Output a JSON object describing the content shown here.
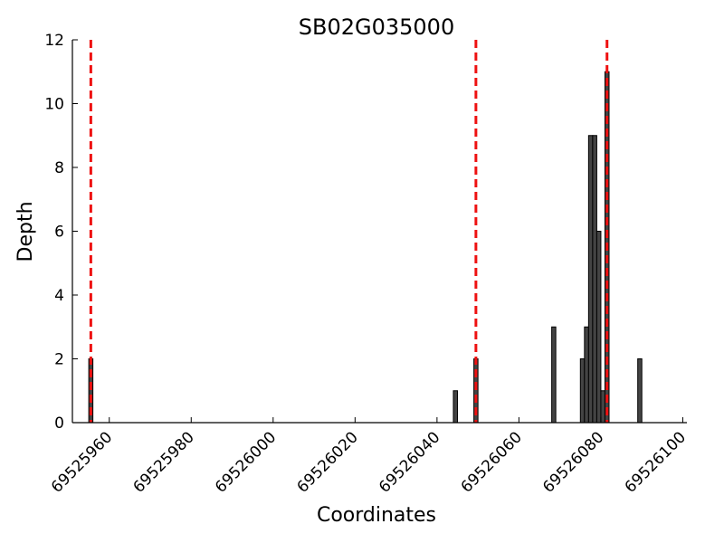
{
  "chart_data": {
    "type": "bar",
    "title": "SB02G035000",
    "xlabel": "Coordinates",
    "ylabel": "Depth",
    "xlim": [
      69525951,
      69526101
    ],
    "ylim": [
      0,
      12
    ],
    "grid": false,
    "legend": "none",
    "x_ticks": [
      69525960,
      69525980,
      69526000,
      69526020,
      69526040,
      69526060,
      69526080,
      69526100
    ],
    "x_tick_labels": [
      "69525960",
      "69525980",
      "69526000",
      "69526020",
      "69526040",
      "69526060",
      "69526080",
      "69526100"
    ],
    "y_ticks": [
      0,
      2,
      4,
      6,
      8,
      10,
      12
    ],
    "y_tick_labels": [
      "0",
      "2",
      "4",
      "6",
      "8",
      "10",
      "12"
    ],
    "bar_color": "#444444",
    "bars": [
      {
        "x": 69525955,
        "depth": 2
      },
      {
        "x": 69526044,
        "depth": 1
      },
      {
        "x": 69526049,
        "depth": 2
      },
      {
        "x": 69526068,
        "depth": 3
      },
      {
        "x": 69526075,
        "depth": 2
      },
      {
        "x": 69526076,
        "depth": 3
      },
      {
        "x": 69526077,
        "depth": 9
      },
      {
        "x": 69526078,
        "depth": 9
      },
      {
        "x": 69526079,
        "depth": 6
      },
      {
        "x": 69526080,
        "depth": 1
      },
      {
        "x": 69526081,
        "depth": 11
      },
      {
        "x": 69526089,
        "depth": 2
      }
    ],
    "vlines_color": "#ee1111",
    "vlines": [
      69525955.5,
      69526049.5,
      69526081.5
    ]
  }
}
